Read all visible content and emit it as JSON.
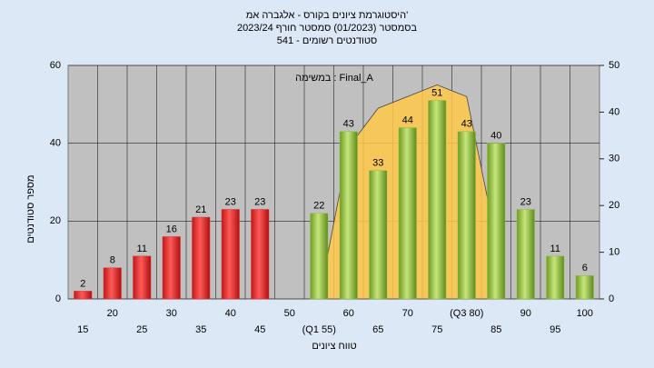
{
  "chart_data": {
    "type": "bar",
    "title": "היסטוגרמת ציונים בקורס - אלגברה אמ'",
    "subtitle": "בסמסטר  (01/2023)  סמסטר חורף  2023/24",
    "note": "541 - סטודנטים רשומים",
    "annotation": "במשימה : Final_A",
    "ylabel": "מספר סטודנטים",
    "xlabel": "טווח ציונים",
    "categories": [
      "15",
      "20",
      "25",
      "30",
      "35",
      "40",
      "45",
      "50",
      "(Q1 55)",
      "60",
      "65",
      "70",
      "75",
      "(Q3 80)",
      "85",
      "90",
      "95",
      "100"
    ],
    "values": [
      2,
      8,
      11,
      16,
      21,
      23,
      23,
      null,
      22,
      43,
      33,
      44,
      51,
      43,
      40,
      23,
      11,
      6
    ],
    "colors": [
      "#e03030",
      "#e03030",
      "#e03030",
      "#e03030",
      "#e03030",
      "#e03030",
      "#e03030",
      "#e03030",
      "#8fbf3a",
      "#8fbf3a",
      "#8fbf3a",
      "#8fbf3a",
      "#8fbf3a",
      "#8fbf3a",
      "#8fbf3a",
      "#8fbf3a",
      "#8fbf3a",
      "#8fbf3a"
    ],
    "area": {
      "color": "#ffc94a",
      "values": [
        null,
        null,
        null,
        null,
        null,
        null,
        null,
        null,
        0,
        39,
        49,
        52,
        55,
        52,
        15,
        null,
        null,
        null
      ]
    },
    "ylim": [
      0,
      60
    ],
    "yticks": [
      0,
      20,
      40,
      60
    ],
    "y2lim": [
      0,
      50
    ],
    "y2ticks": [
      0,
      10,
      20,
      30,
      40,
      50
    ],
    "grid": true
  }
}
